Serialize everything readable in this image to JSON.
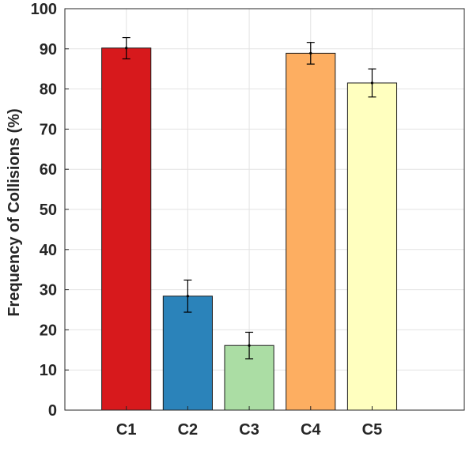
{
  "chart_data": {
    "type": "bar",
    "title": "",
    "xlabel": "",
    "ylabel": "Frequency of Collisions (%)",
    "categories": [
      "C1",
      "C2",
      "C3",
      "C4",
      "C5"
    ],
    "values": [
      90.2,
      28.4,
      16.1,
      88.9,
      81.5
    ],
    "error_low": [
      87.5,
      24.4,
      12.8,
      86.2,
      78.0
    ],
    "error_high": [
      92.8,
      32.4,
      19.4,
      91.6,
      85.0
    ],
    "colors": [
      "#d7191c",
      "#2b83ba",
      "#abdda4",
      "#fdae61",
      "#ffffbf"
    ],
    "ylim": [
      0,
      100
    ],
    "yticks": [
      0,
      10,
      20,
      30,
      40,
      50,
      60,
      70,
      80,
      90,
      100
    ],
    "grid": true
  }
}
